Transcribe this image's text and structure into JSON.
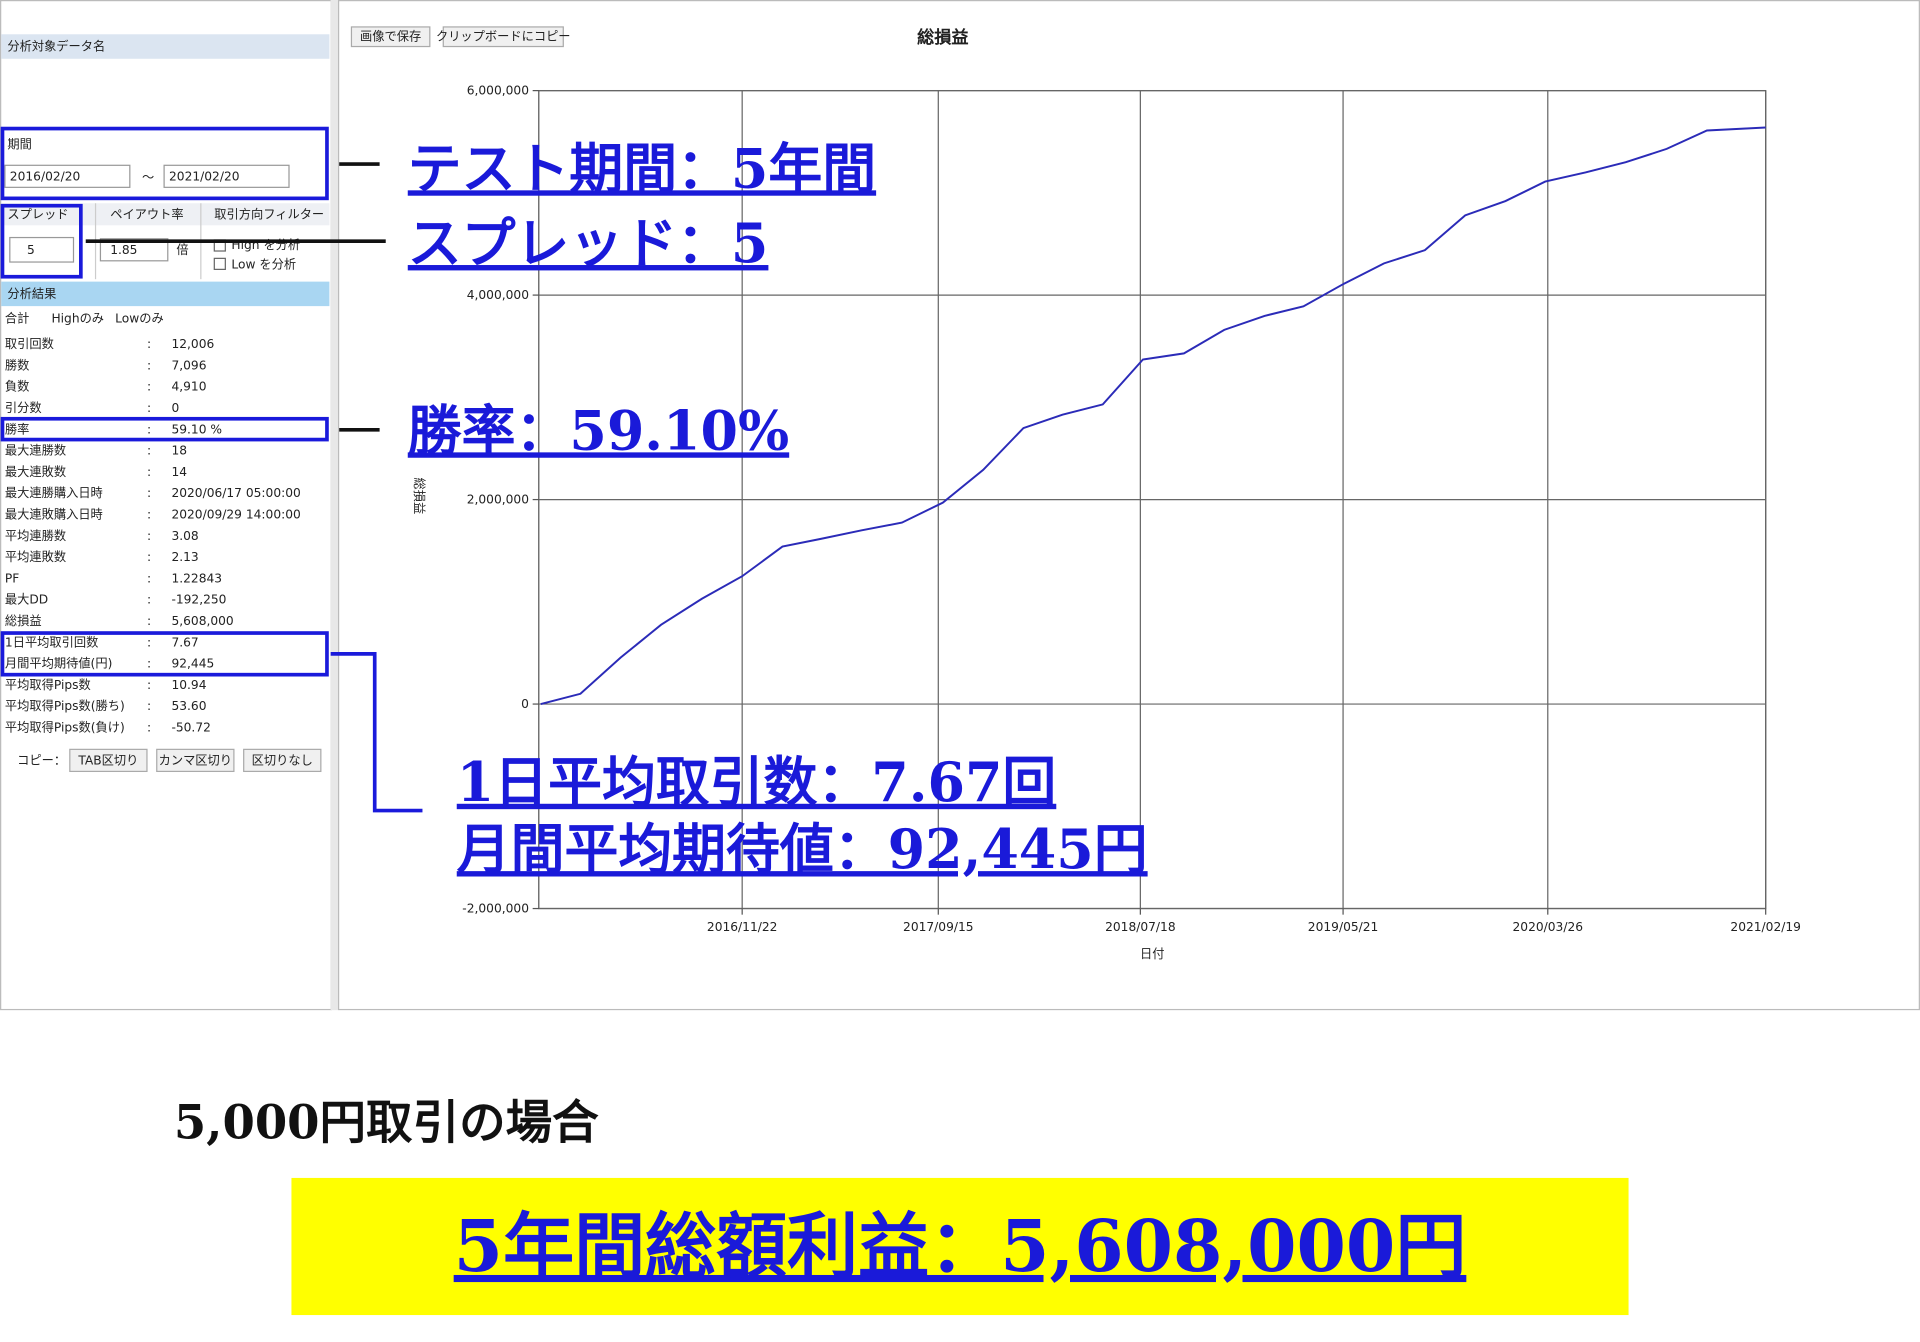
{
  "toolbar": {
    "save_button": "画像で保存",
    "copy_button": "クリップボードにコピー"
  },
  "left_panel": {
    "data_name_header": "分析対象データ名",
    "period_label": "期間",
    "period_start": "2016/02/20",
    "period_separator": "～",
    "period_end": "2021/02/20",
    "spread_label": "スプレッド",
    "spread_value": "5",
    "payout_label": "ペイアウト率",
    "payout_value": "1.85",
    "payout_unit": "倍",
    "filter_label": "取引方向フィルター",
    "filter_high": "High を分析",
    "filter_low": "Low を分析",
    "results_header": "分析結果",
    "tabs": [
      "合計",
      "Highのみ",
      "Lowのみ"
    ],
    "stats_separator": ":",
    "stats": [
      {
        "label": "取引回数",
        "value": "12,006"
      },
      {
        "label": "勝数",
        "value": "7,096"
      },
      {
        "label": "負数",
        "value": "4,910"
      },
      {
        "label": "引分数",
        "value": "0"
      },
      {
        "label": "勝率",
        "value": "59.10 %"
      },
      {
        "label": "最大連勝数",
        "value": "18"
      },
      {
        "label": "最大連敗数",
        "value": "14"
      },
      {
        "label": "最大連勝購入日時",
        "value": "2020/06/17 05:00:00"
      },
      {
        "label": "最大連敗購入日時",
        "value": "2020/09/29 14:00:00"
      },
      {
        "label": "平均連勝数",
        "value": "3.08"
      },
      {
        "label": "平均連敗数",
        "value": "2.13"
      },
      {
        "label": "PF",
        "value": "1.22843"
      },
      {
        "label": "最大DD",
        "value": "-192,250"
      },
      {
        "label": "総損益",
        "value": "5,608,000"
      },
      {
        "label": "1日平均取引回数",
        "value": "7.67"
      },
      {
        "label": "月間平均期待値(円)",
        "value": "92,445"
      },
      {
        "label": "平均取得Pips数",
        "value": "10.94"
      },
      {
        "label": "平均取得Pips数(勝ち)",
        "value": "53.60"
      },
      {
        "label": "平均取得Pips数(負け)",
        "value": "-50.72"
      }
    ],
    "copy_label": "コピー：",
    "copy_buttons": [
      "TAB区切り",
      "カンマ区切り",
      "区切りなし"
    ]
  },
  "chart_data": {
    "type": "line",
    "title": "総損益",
    "x_label": "日付",
    "y_label": "総損益",
    "color": "#2b2bb8",
    "grid": true,
    "x": [
      "2016/01/22",
      "2016/03/22",
      "2016/05/22",
      "2016/07/22",
      "2016/09/22",
      "2016/11/22",
      "2017/01/22",
      "2017/03/22",
      "2017/05/22",
      "2017/07/22",
      "2017/09/22",
      "2017/11/22",
      "2018/01/22",
      "2018/03/22",
      "2018/05/22",
      "2018/07/22",
      "2018/09/22",
      "2018/11/22",
      "2019/01/22",
      "2019/03/22",
      "2019/05/22",
      "2019/07/22",
      "2019/09/22",
      "2019/11/22",
      "2020/01/22",
      "2020/03/22",
      "2020/05/22",
      "2020/07/22",
      "2020/09/22",
      "2020/11/22",
      "2021/02/19"
    ],
    "values": [
      0,
      100000,
      455000,
      775000,
      1030000,
      1250000,
      1540000,
      1617000,
      1700000,
      1775000,
      1970000,
      2290000,
      2700000,
      2830000,
      2930000,
      3370000,
      3430000,
      3660000,
      3796000,
      3890000,
      4110000,
      4310000,
      4440000,
      4780000,
      4920000,
      5110000,
      5200000,
      5300000,
      5430000,
      5610000,
      5640000
    ],
    "xlim": [
      "2016/01/19",
      "2021/02/19"
    ],
    "xticks": [
      "2016/11/22",
      "2017/09/15",
      "2018/07/18",
      "2019/05/21",
      "2020/03/26",
      "2021/02/19"
    ],
    "ylim": [
      -2000000,
      6000000
    ],
    "yticks": [
      {
        "value": -2000000,
        "label": "-2,000,000"
      },
      {
        "value": 0,
        "label": "0"
      },
      {
        "value": 2000000,
        "label": "2,000,000"
      },
      {
        "value": 4000000,
        "label": "4,000,000"
      },
      {
        "value": 6000000,
        "label": "6,000,000"
      }
    ]
  },
  "annotations": {
    "test_period": "テスト期間：5年間",
    "spread": "スプレッド：5",
    "win_rate": "勝率：59.10%",
    "daily_trades": "1日平均取引数：7.67回",
    "monthly_expectation": "月間平均期待値：92,445円"
  },
  "footer": {
    "condition": "5,000円取引の場合",
    "total_profit": "5年間総額利益：5,608,000円"
  }
}
